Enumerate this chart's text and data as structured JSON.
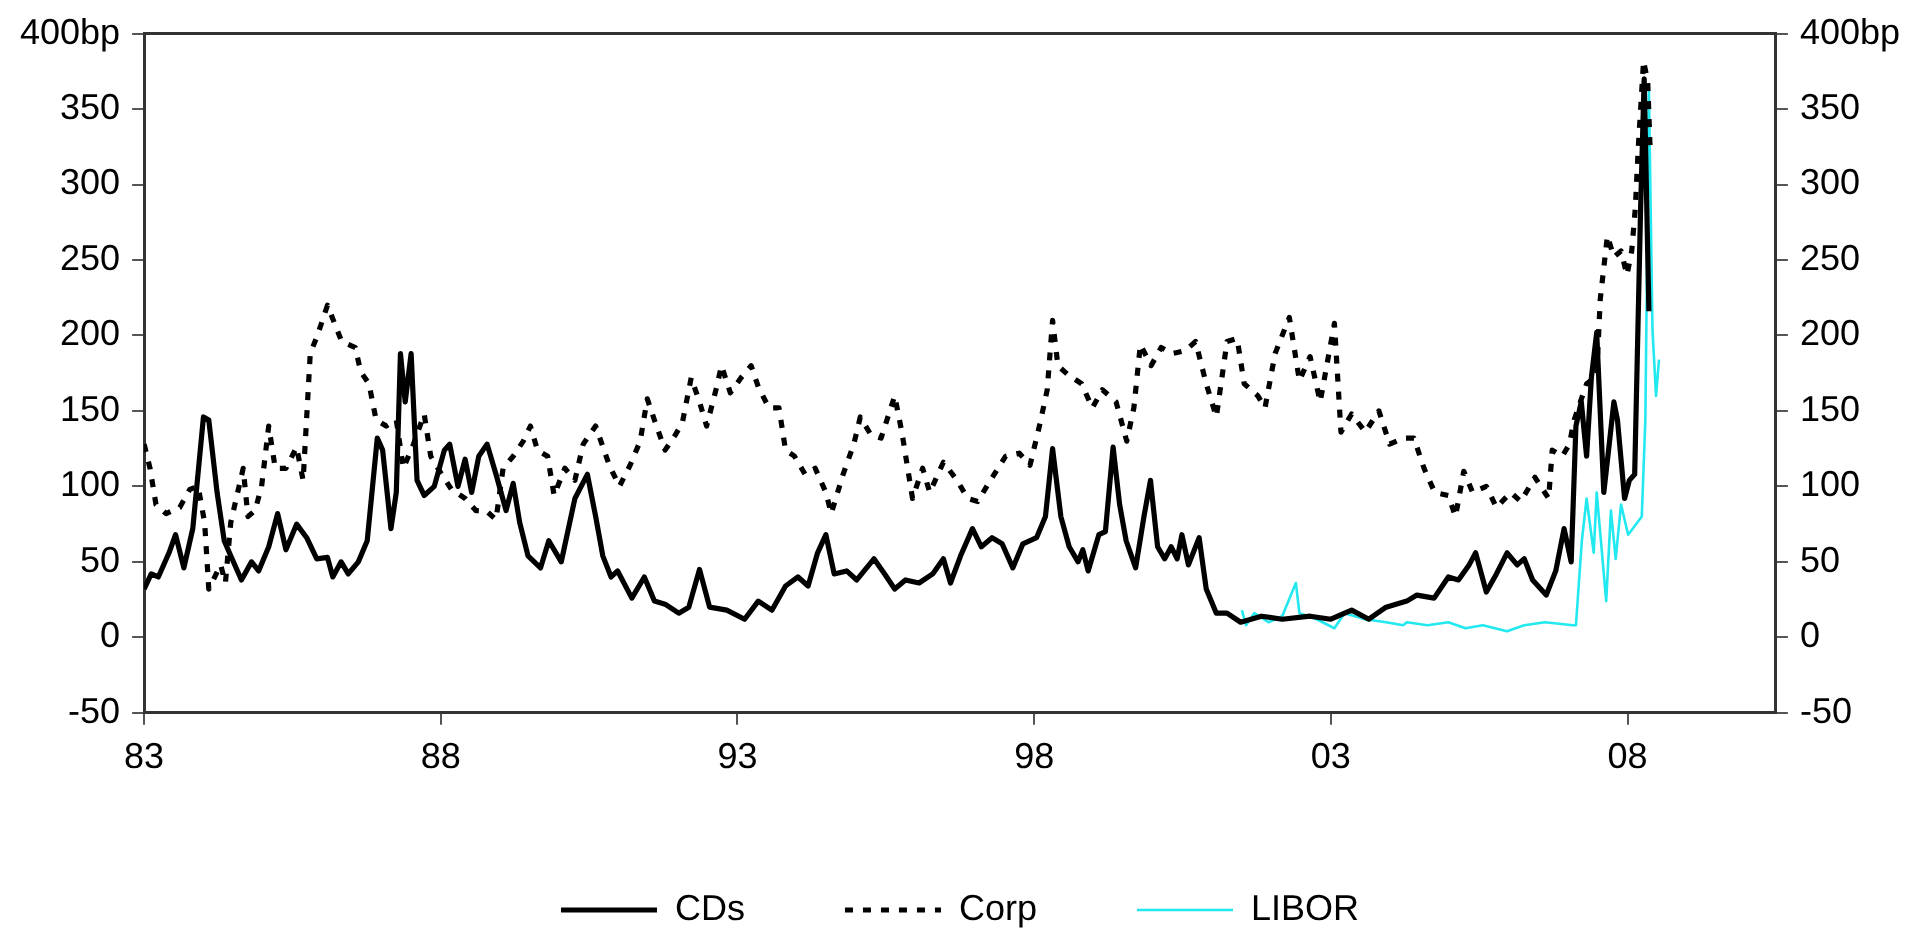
{
  "chart_data": {
    "type": "line",
    "xlim": [
      1983,
      2010.5
    ],
    "xticks": [
      {
        "value": 1983,
        "label": "83"
      },
      {
        "value": 1988,
        "label": "88"
      },
      {
        "value": 1993,
        "label": "93"
      },
      {
        "value": 1998,
        "label": "98"
      },
      {
        "value": 2003,
        "label": "03"
      },
      {
        "value": 2008,
        "label": "08"
      }
    ],
    "ylim": [
      -50,
      400
    ],
    "yticks": [
      -50,
      0,
      50,
      100,
      150,
      200,
      250,
      300,
      350,
      {
        "value": 400,
        "label": "400bp"
      }
    ],
    "y2lim": [
      -50,
      400
    ],
    "y2ticks": [
      -50,
      0,
      50,
      100,
      150,
      200,
      250,
      300,
      350,
      {
        "value": 400,
        "label": "400bp"
      }
    ],
    "grid": false,
    "legend": "bottom",
    "series": [
      {
        "name": "CDs",
        "color": "#000000",
        "line_style": "solid",
        "x": [
          1983.0,
          1983.12,
          1983.24,
          1983.42,
          1983.53,
          1983.67,
          1983.82,
          1984.0,
          1984.09,
          1984.23,
          1984.35,
          1984.46,
          1984.64,
          1984.81,
          1984.93,
          1985.1,
          1985.25,
          1985.39,
          1985.57,
          1985.74,
          1985.91,
          1986.09,
          1986.18,
          1986.32,
          1986.44,
          1986.61,
          1986.76,
          1986.93,
          1987.02,
          1987.16,
          1987.25,
          1987.32,
          1987.4,
          1987.5,
          1987.6,
          1987.72,
          1987.89,
          1988.06,
          1988.15,
          1988.29,
          1988.41,
          1988.52,
          1988.64,
          1988.78,
          1988.93,
          1989.1,
          1989.22,
          1989.33,
          1989.47,
          1989.68,
          1989.82,
          1990.03,
          1990.26,
          1990.47,
          1990.61,
          1990.73,
          1990.87,
          1990.98,
          1991.22,
          1991.43,
          1991.6,
          1991.78,
          1992.01,
          1992.18,
          1992.36,
          1992.53,
          1992.82,
          1993.12,
          1993.35,
          1993.58,
          1993.81,
          1994.02,
          1994.19,
          1994.35,
          1994.49,
          1994.63,
          1994.84,
          1995.01,
          1995.3,
          1995.48,
          1995.65,
          1995.83,
          1996.06,
          1996.29,
          1996.47,
          1996.59,
          1996.76,
          1996.96,
          1997.11,
          1997.29,
          1997.46,
          1997.64,
          1997.81,
          1998.04,
          1998.19,
          1998.31,
          1998.45,
          1998.59,
          1998.74,
          1998.82,
          1998.91,
          1999.09,
          1999.2,
          1999.33,
          1999.44,
          1999.55,
          1999.71,
          1999.85,
          1999.96,
          2000.08,
          2000.2,
          2000.31,
          2000.41,
          2000.49,
          2000.6,
          2000.78,
          2000.9,
          2001.07,
          2001.25,
          2001.48,
          2001.83,
          2002.18,
          2002.65,
          2003.0,
          2003.35,
          2003.64,
          2003.93,
          2004.28,
          2004.45,
          2004.74,
          2004.98,
          2005.15,
          2005.33,
          2005.44,
          2005.62,
          2005.79,
          2005.97,
          2006.14,
          2006.26,
          2006.4,
          2006.63,
          2006.79,
          2006.93,
          2007.05,
          2007.13,
          2007.22,
          2007.31,
          2007.39,
          2007.48,
          2007.6,
          2007.68,
          2007.77,
          2007.83,
          2007.95,
          2008.03,
          2008.12,
          2008.22,
          2008.28,
          2008.36
        ],
        "values": [
          32,
          42,
          40,
          56,
          68,
          46,
          72,
          146,
          144,
          96,
          64,
          54,
          38,
          50,
          44,
          60,
          82,
          58,
          75,
          66,
          52,
          53,
          40,
          50,
          42,
          50,
          64,
          132,
          124,
          72,
          96,
          188,
          156,
          188,
          104,
          94,
          100,
          124,
          128,
          100,
          118,
          96,
          120,
          128,
          108,
          84,
          102,
          76,
          54,
          46,
          64,
          50,
          92,
          108,
          80,
          54,
          40,
          44,
          26,
          40,
          24,
          22,
          16,
          20,
          45,
          20,
          18,
          12,
          24,
          18,
          34,
          40,
          34,
          56,
          68,
          42,
          44,
          38,
          52,
          42,
          32,
          38,
          36,
          42,
          52,
          36,
          54,
          72,
          60,
          66,
          62,
          46,
          62,
          66,
          80,
          125,
          80,
          60,
          50,
          58,
          44,
          68,
          70,
          126,
          88,
          64,
          46,
          80,
          104,
          60,
          52,
          60,
          52,
          68,
          48,
          66,
          32,
          16,
          16,
          10,
          14,
          12,
          14,
          12,
          18,
          12,
          20,
          24,
          28,
          26,
          40,
          38,
          48,
          56,
          30,
          42,
          56,
          48,
          52,
          38,
          28,
          44,
          72,
          50,
          140,
          156,
          120,
          172,
          202,
          96,
          124,
          156,
          144,
          92,
          104,
          108,
          284,
          370,
          216
        ]
      },
      {
        "name": "Corp",
        "color": "#000000",
        "line_style": "dashed",
        "x": [
          1983.0,
          1983.1,
          1983.2,
          1983.37,
          1983.6,
          1983.77,
          1983.91,
          1984.02,
          1984.09,
          1984.29,
          1984.37,
          1984.46,
          1984.67,
          1984.75,
          1984.87,
          1984.98,
          1985.1,
          1985.21,
          1985.39,
          1985.57,
          1985.68,
          1985.8,
          1985.92,
          1986.09,
          1986.21,
          1986.33,
          1986.56,
          1986.65,
          1986.79,
          1986.91,
          1987.08,
          1987.25,
          1987.37,
          1987.54,
          1987.72,
          1987.83,
          1987.95,
          1988.18,
          1988.41,
          1988.59,
          1988.76,
          1988.93,
          1989.05,
          1989.22,
          1989.39,
          1989.51,
          1989.63,
          1989.8,
          1989.91,
          1990.09,
          1990.26,
          1990.4,
          1990.61,
          1990.84,
          1991.01,
          1991.19,
          1991.36,
          1991.48,
          1991.6,
          1991.78,
          1991.95,
          1992.07,
          1992.22,
          1992.36,
          1992.48,
          1992.65,
          1992.73,
          1992.88,
          1993.06,
          1993.23,
          1993.35,
          1993.53,
          1993.7,
          1993.81,
          1993.96,
          1994.14,
          1994.31,
          1994.49,
          1994.58,
          1994.78,
          1994.96,
          1995.07,
          1995.25,
          1995.42,
          1995.65,
          1995.77,
          1995.95,
          1996.12,
          1996.24,
          1996.47,
          1996.7,
          1996.88,
          1997.05,
          1997.23,
          1997.52,
          1997.75,
          1997.93,
          1998.1,
          1998.22,
          1998.31,
          1998.4,
          1998.57,
          1998.8,
          1998.98,
          1999.15,
          1999.38,
          1999.56,
          1999.68,
          1999.79,
          1999.97,
          2000.14,
          2000.32,
          2000.55,
          2000.72,
          2000.9,
          2001.07,
          2001.25,
          2001.42,
          2001.54,
          2001.77,
          2001.89,
          2002.06,
          2002.3,
          2002.47,
          2002.65,
          2002.82,
          2003.06,
          2003.17,
          2003.35,
          2003.58,
          2003.81,
          2003.99,
          2004.22,
          2004.4,
          2004.57,
          2004.75,
          2004.98,
          2005.1,
          2005.24,
          2005.39,
          2005.62,
          2005.79,
          2006.03,
          2006.2,
          2006.44,
          2006.67,
          2006.73,
          2006.9,
          2007.02,
          2007.1,
          2007.31,
          2007.48,
          2007.54,
          2007.66,
          2007.77,
          2007.89,
          2007.99,
          2008.07,
          2008.13,
          2008.18,
          2008.27,
          2008.34,
          2008.38
        ],
        "values": [
          128,
          112,
          88,
          82,
          86,
          98,
          100,
          76,
          32,
          48,
          36,
          76,
          112,
          80,
          84,
          100,
          140,
          112,
          112,
          126,
          104,
          188,
          200,
          220,
          208,
          196,
          192,
          176,
          168,
          144,
          140,
          144,
          112,
          128,
          148,
          120,
          112,
          98,
          92,
          84,
          84,
          78,
          112,
          120,
          130,
          140,
          124,
          120,
          94,
          112,
          104,
          128,
          140,
          114,
          100,
          114,
          130,
          158,
          144,
          124,
          134,
          142,
          172,
          156,
          140,
          166,
          180,
          162,
          172,
          180,
          166,
          152,
          152,
          124,
          120,
          108,
          112,
          96,
          82,
          108,
          128,
          146,
          134,
          132,
          160,
          136,
          92,
          112,
          96,
          116,
          104,
          92,
          90,
          102,
          120,
          122,
          114,
          142,
          164,
          210,
          180,
          174,
          168,
          152,
          164,
          156,
          130,
          152,
          194,
          180,
          192,
          188,
          190,
          196,
          168,
          146,
          196,
          198,
          168,
          160,
          152,
          188,
          212,
          170,
          186,
          156,
          208,
          136,
          148,
          136,
          150,
          128,
          132,
          132,
          112,
          96,
          94,
          80,
          110,
          96,
          100,
          86,
          96,
          90,
          106,
          92,
          124,
          120,
          128,
          144,
          168,
          173,
          224,
          266,
          252,
          256,
          240,
          256,
          284,
          324,
          382,
          368,
          324
        ]
      },
      {
        "name": "LIBOR",
        "color": "#22e8f0",
        "line_style": "solid",
        "x": [
          2001.5,
          2001.57,
          2001.71,
          2001.95,
          2002.18,
          2002.41,
          2002.47,
          2002.76,
          2003.06,
          2003.23,
          2003.58,
          2003.93,
          2004.22,
          2004.28,
          2004.63,
          2004.98,
          2005.27,
          2005.56,
          2005.97,
          2006.26,
          2006.61,
          2007.08,
          2007.13,
          2007.23,
          2007.31,
          2007.43,
          2007.48,
          2007.64,
          2007.72,
          2007.8,
          2007.89,
          2008.01,
          2008.24,
          2008.3,
          2008.36,
          2008.42,
          2008.48,
          2008.53
        ],
        "values": [
          18,
          8,
          16,
          10,
          14,
          36,
          16,
          12,
          6,
          16,
          12,
          10,
          8,
          10,
          8,
          10,
          6,
          8,
          4,
          8,
          10,
          8,
          8,
          64,
          92,
          56,
          96,
          24,
          84,
          52,
          88,
          68,
          80,
          144,
          363,
          204,
          160,
          184
        ]
      }
    ]
  }
}
